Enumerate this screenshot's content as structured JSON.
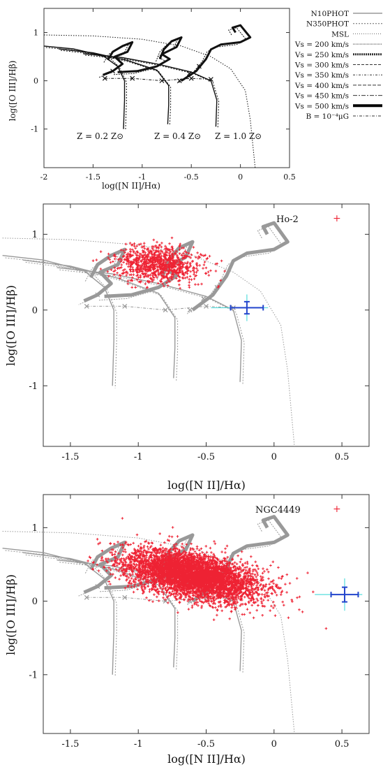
{
  "chart_data": [
    {
      "type": "scatter",
      "panel": "top",
      "xlabel": "log([N II]/Hα)",
      "ylabel": "log([O III]/Hβ)",
      "xlim": [
        -2,
        0.5
      ],
      "ylim": [
        -1.8,
        1.5
      ],
      "xticks": [
        "-2",
        "-1.5",
        "-1",
        "-0.5",
        "0",
        "0.5"
      ],
      "yticks": [
        "1",
        "0",
        "-1"
      ],
      "legend_position": "right",
      "legend": [
        "N10PHOT",
        "N350PHOT",
        "MSL",
        "Vs = 200 km/s",
        "Vs = 250 km/s",
        "Vs = 300 km/s",
        "Vs = 350 km/s",
        "Vs = 400 km/s",
        "Vs = 450 km/s",
        "Vs = 500 km/s",
        "B = 10⁻⁴μG"
      ],
      "annotations": [
        "Z = 0.2 Z⊙",
        "Z = 0.4 Z⊙",
        "Z = 1.0 Z⊙"
      ]
    },
    {
      "type": "scatter",
      "panel": "middle",
      "xlabel": "log([N II]/Hα)",
      "ylabel": "log([O III]/Hβ)",
      "xlim": [
        -1.7,
        0.7
      ],
      "ylim": [
        -1.8,
        1.4
      ],
      "xticks": [
        "-1.5",
        "-1",
        "-0.5",
        "0",
        "0.5"
      ],
      "yticks": [
        "1",
        "0",
        "-1"
      ],
      "series": [
        {
          "name": "Ho-2",
          "n_points_approx": 900,
          "center": [
            -0.8,
            0.65
          ]
        }
      ],
      "errorbar": {
        "x": -0.2,
        "y": 0.03,
        "xerr": 0.12,
        "yerr": 0.08
      }
    },
    {
      "type": "scatter",
      "panel": "bottom",
      "xlabel": "log([N II]/Hα)",
      "ylabel": "log([O III]/Hβ)",
      "xlim": [
        -1.7,
        0.7
      ],
      "ylim": [
        -1.8,
        1.45
      ],
      "xticks": [
        "-1.5",
        "-1",
        "-0.5",
        "0",
        "0.5"
      ],
      "yticks": [
        "1",
        "0",
        "-1"
      ],
      "series": [
        {
          "name": "NGC4449",
          "n_points_approx": 5000,
          "center": [
            -0.55,
            0.35
          ]
        }
      ],
      "errorbar": {
        "x": 0.52,
        "y": 0.09,
        "xerr": 0.1,
        "yerr": 0.1
      }
    }
  ],
  "colors": {
    "data": "#ee2233",
    "model": "#999999",
    "model_top": "#111111",
    "errbar": "#2244cc",
    "errbar2": "#55dddd"
  }
}
